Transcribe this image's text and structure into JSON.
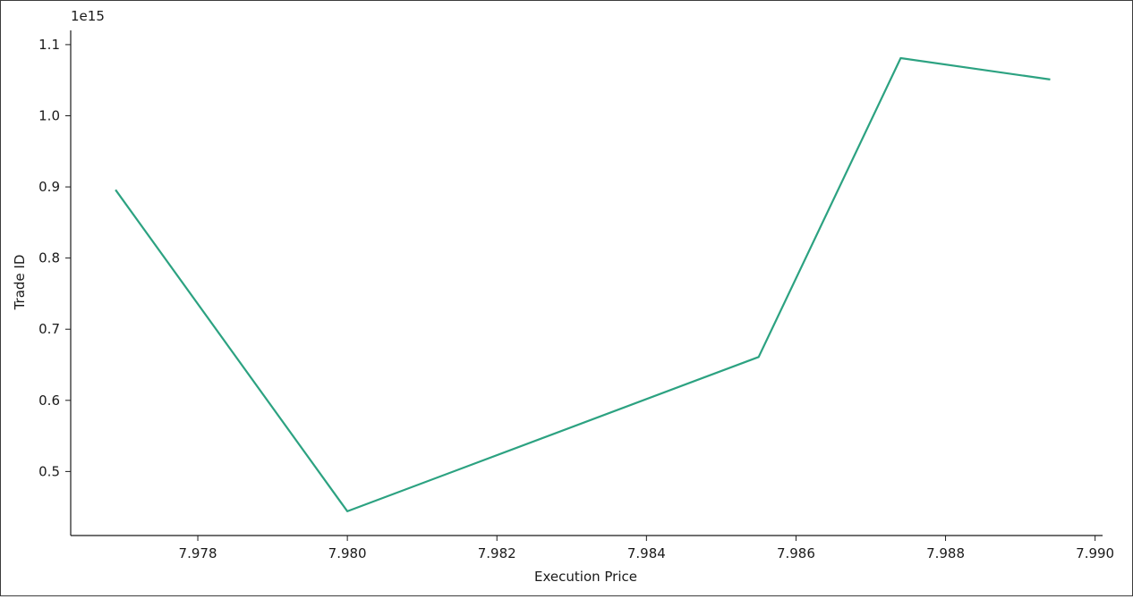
{
  "chart_data": {
    "type": "line",
    "title": "",
    "xlabel": "Execution Price",
    "ylabel": "Trade ID",
    "y_offset_label": "1e15",
    "x": [
      7.9769,
      7.98,
      7.9855,
      7.9874,
      7.9894
    ],
    "series": [
      {
        "name": "",
        "y": [
          896000000000000.0,
          444000000000000.0,
          661000000000000.0,
          1081000000000000.0,
          1051000000000000.0
        ]
      }
    ],
    "xlim": [
      7.9763,
      7.9901
    ],
    "ylim": [
      410000000000000.0,
      1120000000000000.0
    ],
    "x_ticks": [
      7.978,
      7.98,
      7.982,
      7.984,
      7.986,
      7.988,
      7.99
    ],
    "x_tick_labels": [
      "7.978",
      "7.980",
      "7.982",
      "7.984",
      "7.986",
      "7.988",
      "7.990"
    ],
    "y_ticks": [
      500000000000000.0,
      600000000000000.0,
      700000000000000.0,
      800000000000000.0,
      900000000000000.0,
      1000000000000000.0,
      1100000000000000.0
    ],
    "y_tick_labels": [
      "0.5",
      "0.6",
      "0.7",
      "0.8",
      "0.9",
      "1.0",
      "1.1"
    ],
    "grid": false,
    "line_color": "#2ca281",
    "axis_color": "#1a1a1a",
    "spines": [
      "left",
      "bottom"
    ]
  }
}
